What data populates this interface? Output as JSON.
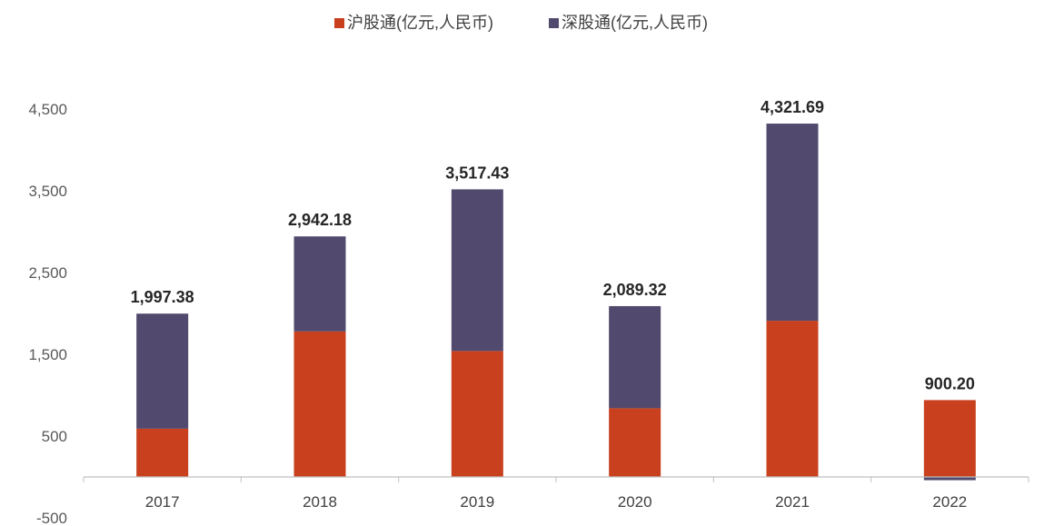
{
  "chart_data": {
    "type": "bar",
    "stacked": true,
    "categories": [
      "2017",
      "2018",
      "2019",
      "2020",
      "2021",
      "2022"
    ],
    "series": [
      {
        "name": "沪股通(亿元,人民币)",
        "color": "#C8401E",
        "values": [
          590,
          1780,
          1540,
          840,
          1910,
          940
        ]
      },
      {
        "name": "深股通(亿元,人民币)",
        "color": "#524A6E",
        "values": [
          1407.38,
          1162.18,
          1977.43,
          1249.32,
          2411.69,
          -39.8
        ]
      }
    ],
    "totals": [
      "1,997.38",
      "2,942.18",
      "3,517.43",
      "2,089.32",
      "4,321.69",
      "900.20"
    ],
    "y_ticks": [
      "4,500",
      "3,500",
      "2,500",
      "1,500",
      "500",
      "-500"
    ],
    "ylim": [
      -500,
      4500
    ],
    "legend_position": "top-center",
    "grid": false
  }
}
